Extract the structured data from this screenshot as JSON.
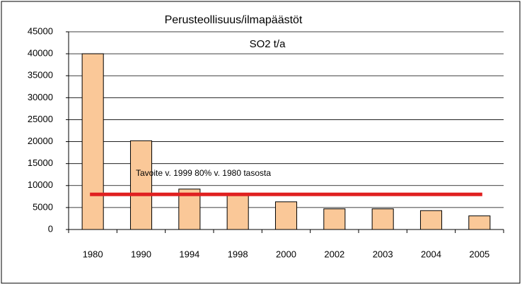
{
  "chart_data": {
    "type": "bar",
    "title": "Perusteollisuus/ilmapäästöt",
    "subtitle": "SO2 t/a",
    "annotation": "Tavoite v. 1999 80% v. 1980 tasosta",
    "categories": [
      "1980",
      "1990",
      "1994",
      "1998",
      "2000",
      "2002",
      "2003",
      "2004",
      "2005"
    ],
    "values": [
      40000,
      20200,
      9200,
      7800,
      6300,
      4700,
      4700,
      4300,
      3100
    ],
    "color": "#fac898",
    "target": {
      "value": 8000,
      "color": "#e02020"
    },
    "ylim": [
      0,
      45000
    ],
    "yticks": [
      0,
      5000,
      10000,
      15000,
      20000,
      25000,
      30000,
      35000,
      40000,
      45000
    ],
    "grid": true
  }
}
